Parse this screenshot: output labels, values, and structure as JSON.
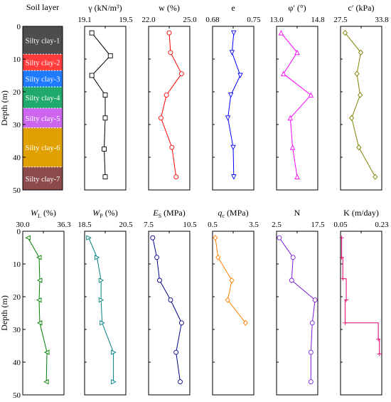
{
  "y_axis": {
    "label": "Depth (m)",
    "ticks": [
      "0",
      "10",
      "20",
      "30",
      "40",
      "50"
    ]
  },
  "soil_layer": {
    "title": "Soil layer",
    "layers": [
      {
        "label": "Silty clay-1",
        "top": 0,
        "bottom": 8.5,
        "color": "#4d4d4d"
      },
      {
        "label": "Silty clay-2",
        "top": 8.5,
        "bottom": 13.5,
        "color": "#ff3b3b"
      },
      {
        "label": "Silty clay-3",
        "top": 13.5,
        "bottom": 18.5,
        "color": "#1e7bff"
      },
      {
        "label": "Silty clay-4",
        "top": 18.5,
        "bottom": 25,
        "color": "#1faa6b"
      },
      {
        "label": "Silty clay-5",
        "top": 25,
        "bottom": 31,
        "color": "#cc66ee"
      },
      {
        "label": "Silty clay-6",
        "top": 31,
        "bottom": 43,
        "color": "#e0a100"
      },
      {
        "label": "Silty clay-7",
        "top": 43,
        "bottom": 50,
        "color": "#8c4a4a"
      }
    ]
  },
  "chart_data": [
    {
      "type": "line",
      "title": "γ (kN/m³)",
      "xlim": [
        19.1,
        19.5
      ],
      "tick_labels": [
        "19.1",
        "19.5"
      ],
      "color": "#000000",
      "marker": "square",
      "x": [
        19.17,
        19.35,
        19.17,
        19.3,
        19.3,
        19.29,
        19.3
      ],
      "y": [
        2,
        9,
        15,
        21,
        28,
        37.5,
        46
      ]
    },
    {
      "type": "line",
      "title": "w (%)",
      "xlim": [
        22.0,
        25.0
      ],
      "tick_labels": [
        "22.0",
        "25.0"
      ],
      "color": "#ff0000",
      "marker": "circle",
      "x": [
        23.5,
        23.6,
        24.4,
        23.3,
        22.9,
        23.7,
        24.0
      ],
      "y": [
        2,
        8,
        14.5,
        21,
        28,
        37,
        46
      ]
    },
    {
      "type": "line",
      "title": "e",
      "xlim": [
        0.68,
        0.75
      ],
      "tick_labels": [
        "0.68",
        "0.75"
      ],
      "color": "#0000ff",
      "marker": "triangle-down",
      "x": [
        0.716,
        0.713,
        0.727,
        0.711,
        0.706,
        0.715,
        0.716
      ],
      "y": [
        2,
        8,
        15,
        21,
        28,
        37,
        46
      ]
    },
    {
      "type": "line",
      "title": "φ′ (°)",
      "xlim": [
        13.0,
        14.8
      ],
      "tick_labels": [
        "13.0",
        "14.8"
      ],
      "color": "#ff00ff",
      "marker": "triangle-up",
      "x": [
        13.2,
        13.9,
        13.3,
        14.5,
        13.6,
        13.7,
        13.9
      ],
      "y": [
        2,
        8,
        14.5,
        21,
        28,
        37,
        46
      ]
    },
    {
      "type": "line",
      "title": "c′ (kPa)",
      "xlim": [
        27.5,
        33.8
      ],
      "tick_labels": [
        "27.5",
        "33.8"
      ],
      "color": "#808000",
      "marker": "diamond",
      "x": [
        28.2,
        30.6,
        30.0,
        30.5,
        29.2,
        30.3,
        32.8
      ],
      "y": [
        2,
        8,
        14.5,
        21,
        28,
        37,
        46
      ]
    },
    {
      "type": "line",
      "title": "W_L (%)",
      "xlim": [
        30.0,
        36.3
      ],
      "tick_labels": [
        "30.0",
        "36.3"
      ],
      "color": "#007f00",
      "marker": "triangle-left",
      "x": [
        30.8,
        32.5,
        32.6,
        32.5,
        32.6,
        33.7,
        33.6
      ],
      "y": [
        2,
        8,
        15,
        21,
        28,
        37,
        46
      ]
    },
    {
      "type": "line",
      "title": "W_P (%)",
      "xlim": [
        18.5,
        20.5
      ],
      "tick_labels": [
        "18.5",
        "20.5"
      ],
      "color": "#008080",
      "marker": "triangle-right",
      "x": [
        18.7,
        19.1,
        19.3,
        19.3,
        19.35,
        19.9,
        19.9
      ],
      "y": [
        2,
        8,
        15,
        21,
        28,
        37,
        46
      ]
    },
    {
      "type": "line",
      "title": "E_S (MPa)",
      "xlim": [
        7.5,
        10.5
      ],
      "tick_labels": [
        "7.5",
        "10.5"
      ],
      "color": "#00008b",
      "marker": "circle",
      "x": [
        7.8,
        8.1,
        8.3,
        9.1,
        9.9,
        9.5,
        9.8
      ],
      "y": [
        2,
        8,
        15,
        21,
        28,
        37,
        46
      ]
    },
    {
      "type": "line",
      "title": "q_c (MPa)",
      "xlim": [
        0.5,
        3.5
      ],
      "tick_labels": [
        "0.5",
        "3.5"
      ],
      "color": "#ff8000",
      "marker": "diamond",
      "x": [
        0.7,
        0.9,
        1.9,
        1.6,
        2.9
      ],
      "y": [
        2,
        8,
        15,
        21,
        28
      ]
    },
    {
      "type": "line",
      "title": "N",
      "xlim": [
        2.5,
        17.5
      ],
      "tick_labels": [
        "2.5",
        "17.5"
      ],
      "color": "#7a1fd6",
      "marker": "circle",
      "x": [
        3.5,
        8.5,
        8.0,
        16.5,
        15.5,
        15.0,
        15.0
      ],
      "y": [
        2,
        8,
        15,
        21,
        28,
        37,
        46
      ]
    },
    {
      "type": "line",
      "title": "K (m/day)",
      "xlim": [
        0.05,
        0.23
      ],
      "tick_labels": [
        "0.05",
        "0.23"
      ],
      "color": "#e6006f",
      "marker": "plus",
      "x": [
        0.055,
        0.055,
        0.06,
        0.06,
        0.075,
        0.075,
        0.07,
        0.07,
        0.215,
        0.215,
        0.22,
        0.22
      ],
      "y": [
        2,
        8,
        8,
        14.5,
        14.5,
        21,
        21,
        28,
        28,
        33,
        33,
        37.5
      ]
    }
  ]
}
